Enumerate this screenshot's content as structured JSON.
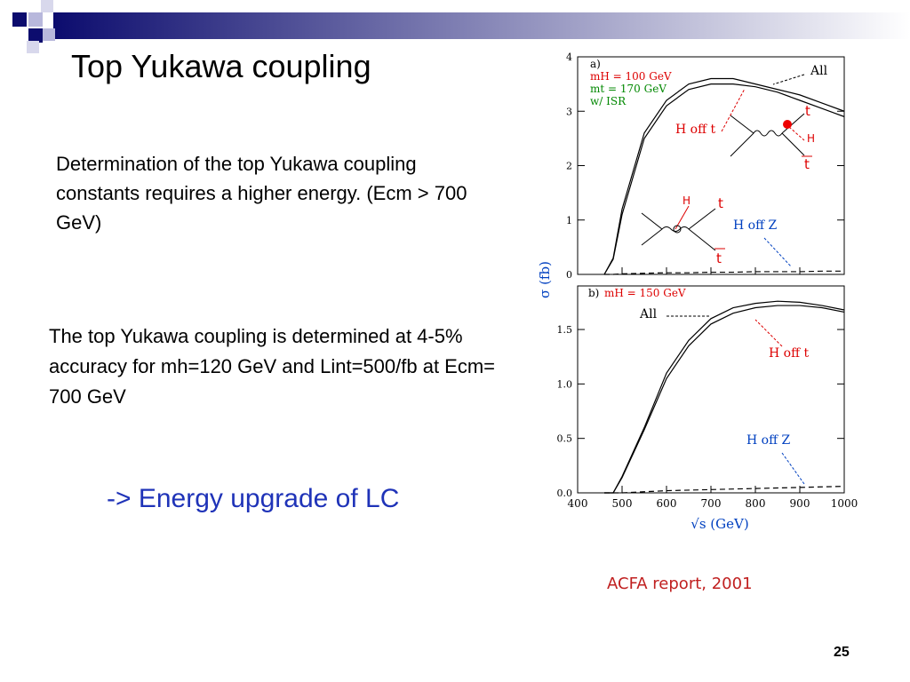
{
  "slide": {
    "title": "Top Yukawa coupling",
    "paragraph_1": "Determination of the top Yukawa coupling constants requires a higher energy. (Ecm > 700 GeV)",
    "paragraph_2": "The top Yukawa coupling is determined at 4-5% accuracy for mh=120 GeV and Lint=500/fb at Ecm= 700 GeV",
    "conclusion": "-> Energy upgrade of LC",
    "figure_caption": "ACFA report, 2001",
    "page_number": "25",
    "y_axis_label": "σ (fb)",
    "x_axis_label": "√s (GeV)",
    "diagram_labels": [
      "t",
      "H",
      "t",
      "H",
      "t",
      "t"
    ]
  },
  "chart_data": [
    {
      "type": "line",
      "annotations": [
        "a)",
        "mH = 100 GeV",
        "mt = 170 GeV",
        "w/ ISR"
      ],
      "x": [
        460,
        480,
        500,
        550,
        600,
        650,
        700,
        750,
        800,
        850,
        900,
        950,
        1000
      ],
      "xlim": [
        400,
        1000
      ],
      "ylim": [
        0,
        4
      ],
      "yticks": [
        0,
        1,
        2,
        3,
        4
      ],
      "series": [
        {
          "name": "All",
          "color": "#000000",
          "values": [
            0,
            0.3,
            1.2,
            2.6,
            3.2,
            3.5,
            3.6,
            3.6,
            3.5,
            3.4,
            3.3,
            3.15,
            3.0
          ]
        },
        {
          "name": "H off t",
          "color": "#000000",
          "values": [
            0,
            0.28,
            1.1,
            2.5,
            3.1,
            3.4,
            3.5,
            3.5,
            3.45,
            3.35,
            3.2,
            3.05,
            2.9
          ]
        },
        {
          "name": "H off Z",
          "color": "#000000",
          "dashed": true,
          "values": [
            0,
            0,
            0.01,
            0.02,
            0.03,
            0.03,
            0.04,
            0.04,
            0.05,
            0.05,
            0.05,
            0.06,
            0.06
          ]
        }
      ]
    },
    {
      "type": "line",
      "annotations": [
        "b)",
        "mH = 150 GeV"
      ],
      "x": [
        460,
        480,
        500,
        550,
        600,
        650,
        700,
        750,
        800,
        850,
        900,
        950,
        1000
      ],
      "xlim": [
        400,
        1000
      ],
      "ylim": [
        0,
        1.9
      ],
      "yticks": [
        {
          "value": 0,
          "label": "0.0"
        },
        0.5,
        {
          "value": 1,
          "label": "1.0"
        },
        1.5
      ],
      "xticks": [
        400,
        500,
        600,
        700,
        800,
        900,
        1000
      ],
      "series": [
        {
          "name": "All",
          "color": "#000000",
          "values": [
            0,
            0,
            0.15,
            0.6,
            1.1,
            1.4,
            1.6,
            1.7,
            1.74,
            1.76,
            1.75,
            1.72,
            1.68
          ]
        },
        {
          "name": "H off t",
          "color": "#000000",
          "values": [
            0,
            0,
            0.14,
            0.58,
            1.05,
            1.35,
            1.55,
            1.65,
            1.7,
            1.72,
            1.72,
            1.7,
            1.66
          ]
        },
        {
          "name": "H off Z",
          "color": "#000000",
          "dashed": true,
          "values": [
            0,
            0,
            0,
            0.01,
            0.02,
            0.025,
            0.03,
            0.035,
            0.04,
            0.045,
            0.05,
            0.055,
            0.06
          ]
        }
      ]
    }
  ]
}
